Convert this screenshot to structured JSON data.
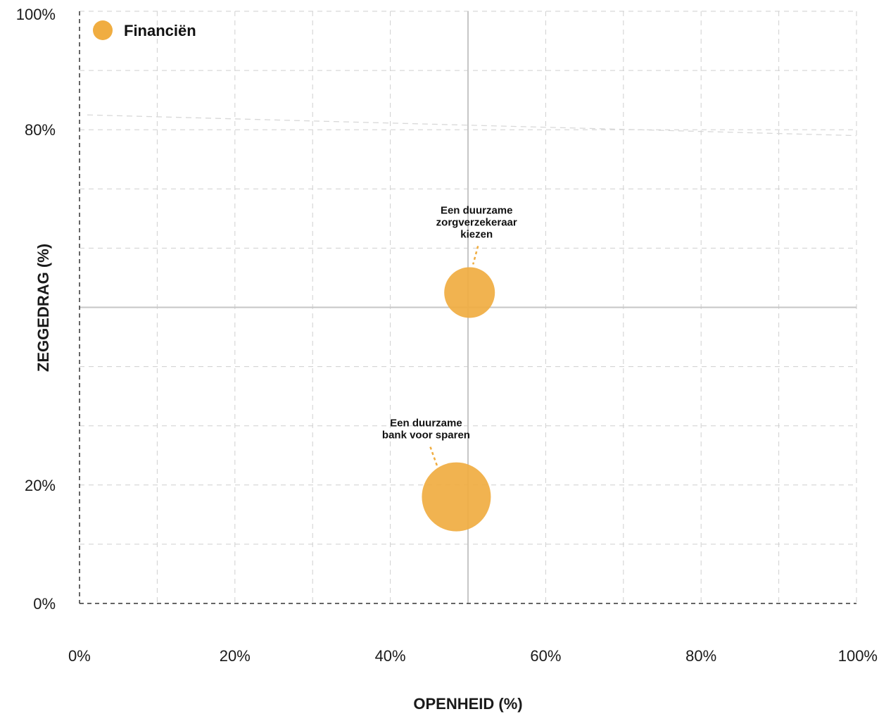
{
  "colors": {
    "bubble": "#f0ad41",
    "grid": "#cfcfcf",
    "axis": "#333333",
    "midline": "#c6c6c6",
    "trend": "#d8d8d8"
  },
  "chart_data": {
    "type": "scatter",
    "title": "",
    "xlabel": "OPENHEID (%)",
    "ylabel": "ZEGGEDRAG (%)",
    "xlim": [
      0,
      100
    ],
    "ylim": [
      0,
      100
    ],
    "x_ticks": [
      "0%",
      "20%",
      "40%",
      "60%",
      "80%",
      "100%"
    ],
    "y_ticks": [
      {
        "value": 0,
        "label": "0%"
      },
      {
        "value": 20,
        "label": "20%"
      },
      {
        "value": 80,
        "label": "80%"
      },
      {
        "value": 100,
        "label": "100%"
      }
    ],
    "grid": true,
    "legend": {
      "placement": "top-left",
      "entries": [
        "Financiën"
      ]
    },
    "midlines": {
      "x": 50,
      "y": 50
    },
    "trendline": {
      "x": [
        1,
        100
      ],
      "y": [
        82.5,
        79
      ]
    },
    "series": [
      {
        "name": "Financiën",
        "points": [
          {
            "x": 50.2,
            "y": 52.5,
            "size": 36,
            "label_lines": [
              "Een duurzame",
              "zorgverzekeraar",
              "kiezen"
            ]
          },
          {
            "x": 48.5,
            "y": 18.0,
            "size": 49,
            "label_lines": [
              "Een duurzame",
              "bank voor sparen"
            ]
          }
        ]
      }
    ]
  }
}
